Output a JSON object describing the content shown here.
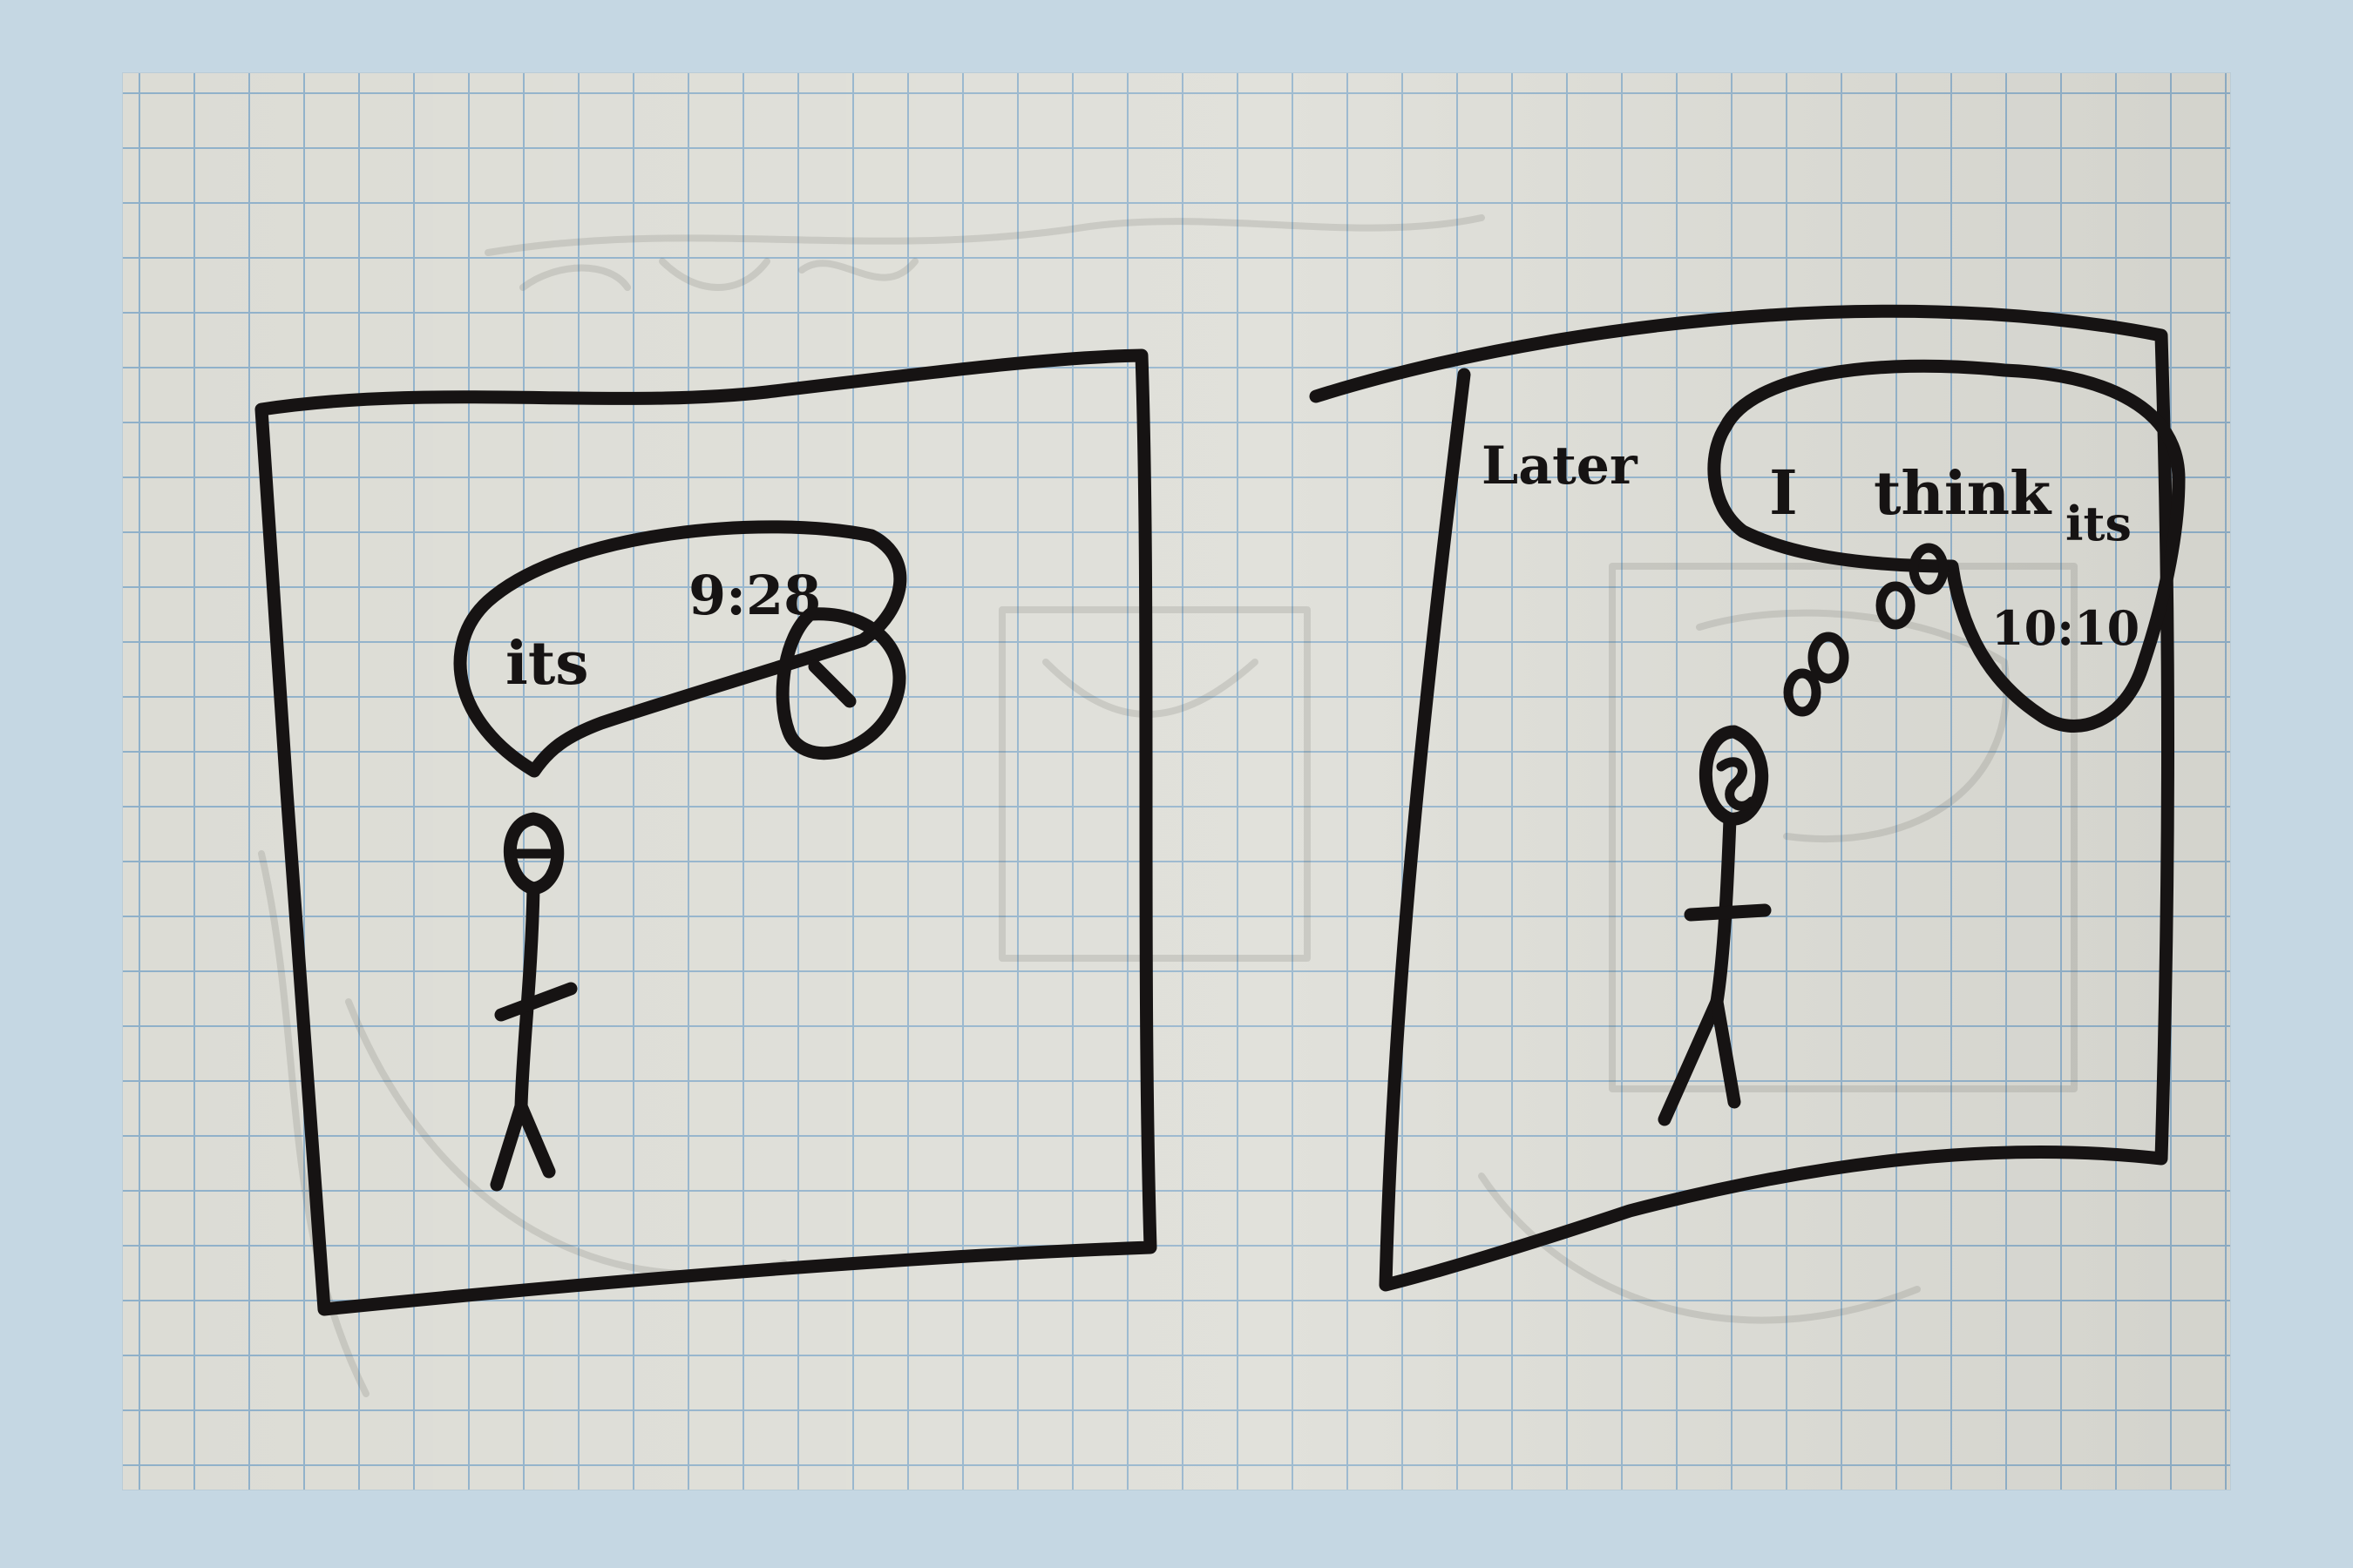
{
  "panels": [
    {
      "speech": [
        "its",
        "9:28"
      ]
    },
    {
      "caption": "Later",
      "thought": [
        "I",
        "think",
        "its",
        "10:10"
      ]
    }
  ],
  "colors": {
    "backdrop": "#c5d7e3",
    "paper": "#dcdcd5",
    "grid": "#8fb0c9",
    "ink": "#161313"
  }
}
